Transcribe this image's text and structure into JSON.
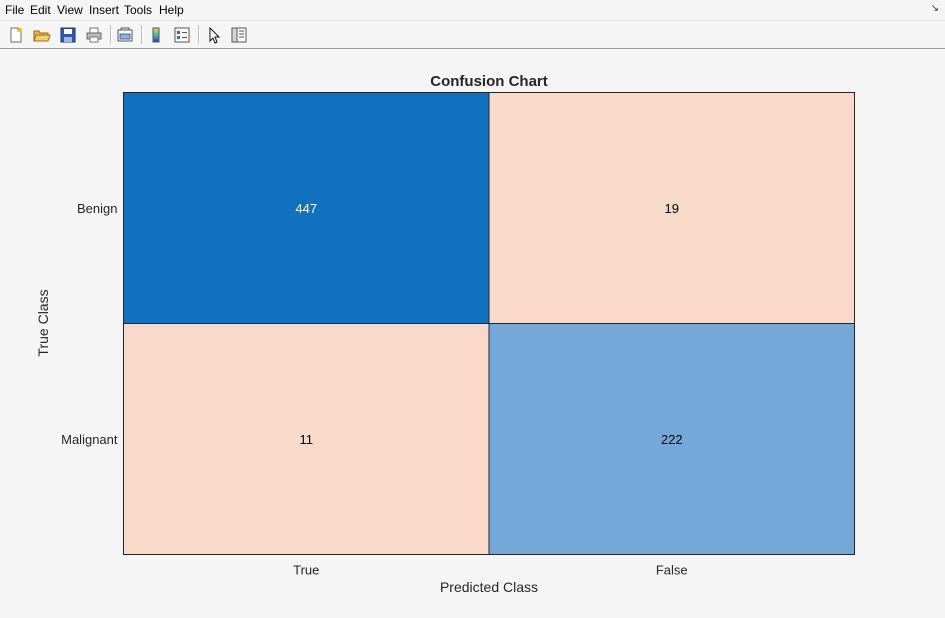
{
  "menu": {
    "items": [
      "File",
      "Edit",
      "View",
      "Insert",
      "Tools",
      "Help"
    ]
  },
  "toolbar": {
    "icons": [
      "new-figure-icon",
      "open-file-icon",
      "save-icon",
      "print-icon",
      "link-plot-icon",
      "insert-colorbar-icon",
      "insert-legend-icon",
      "pointer-icon",
      "property-inspector-icon"
    ]
  },
  "chart_data": {
    "type": "heatmap",
    "title": "Confusion Chart",
    "xlabel": "Predicted Class",
    "ylabel": "True Class",
    "x_categories": [
      "True",
      "False"
    ],
    "y_categories": [
      "Benign",
      "Malignant"
    ],
    "values": [
      [
        447,
        19
      ],
      [
        11,
        222
      ]
    ],
    "colors": {
      "diag_max": "#1071c1",
      "diag_mid": "#73a8d8",
      "offdiag": "#f8d9ca",
      "dark_text": "#000000",
      "light_text": "#ffffff"
    }
  }
}
